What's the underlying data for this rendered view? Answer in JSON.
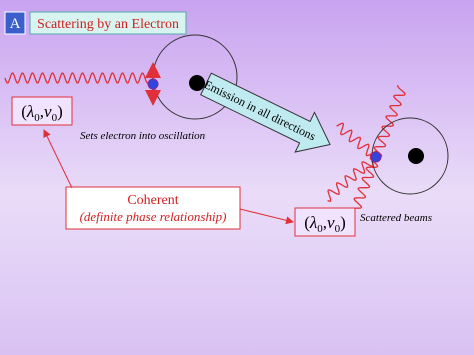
{
  "badge": "A",
  "title": "Scattering by an Electron",
  "incident": {
    "formula": [
      "(",
      "λ",
      "0",
      ",",
      "ν",
      "0",
      ")"
    ],
    "caption": "Sets electron into oscillation"
  },
  "emission": "Emission in all directions",
  "coherent": {
    "title": "Coherent",
    "subtitle": "(definite phase relationship)"
  },
  "scattered": {
    "formula": [
      "(",
      "λ",
      "0",
      ",",
      "ν",
      "0",
      ")"
    ],
    "caption": "Scattered beams"
  }
}
